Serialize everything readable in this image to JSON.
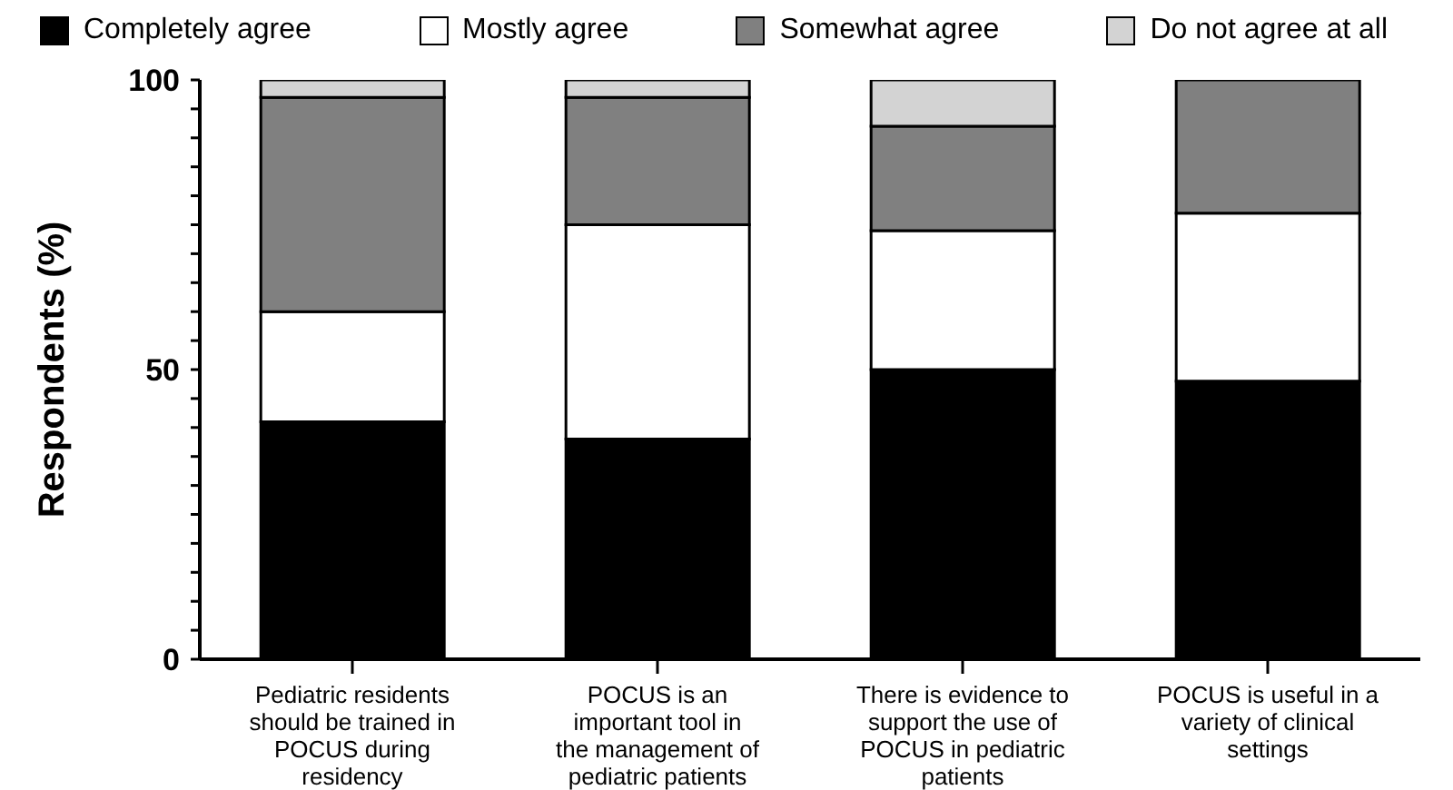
{
  "chart_data": {
    "type": "bar",
    "stacked": true,
    "ylabel": "Respondents (%)",
    "legend": "top",
    "ylim": [
      0,
      100
    ],
    "yticks": [
      0,
      {
        "value": 5,
        "label": null
      },
      {
        "value": 10,
        "label": null
      },
      {
        "value": 15,
        "label": null
      },
      {
        "value": 20,
        "label": null
      },
      {
        "value": 25,
        "label": null
      },
      {
        "value": 30,
        "label": null
      },
      {
        "value": 35,
        "label": null
      },
      {
        "value": 40,
        "label": null
      },
      {
        "value": 45,
        "label": null
      },
      50,
      {
        "value": 55,
        "label": null
      },
      {
        "value": 60,
        "label": null
      },
      {
        "value": 65,
        "label": null
      },
      {
        "value": 70,
        "label": null
      },
      {
        "value": 75,
        "label": null
      },
      {
        "value": 80,
        "label": null
      },
      {
        "value": 85,
        "label": null
      },
      {
        "value": 90,
        "label": null
      },
      {
        "value": 95,
        "label": null
      },
      100
    ],
    "categories": [
      "Pediatric residents should be trained in POCUS during residency",
      "POCUS is an important tool in the management of pediatric patients",
      "There is evidence to support the use of POCUS in pediatric patients",
      "POCUS is useful in a variety of clinical settings"
    ],
    "series": [
      {
        "name": "Completely agree",
        "color": "#000000",
        "values": [
          41,
          38,
          50,
          48
        ]
      },
      {
        "name": "Mostly agree",
        "color": "#ffffff",
        "values": [
          19,
          37,
          24,
          29
        ]
      },
      {
        "name": "Somewhat agree",
        "color": "#808080",
        "values": [
          37,
          22,
          18,
          23
        ]
      },
      {
        "name": "Do not agree at all",
        "color": "#d3d3d3",
        "values": [
          3,
          3,
          8,
          0
        ]
      }
    ]
  }
}
